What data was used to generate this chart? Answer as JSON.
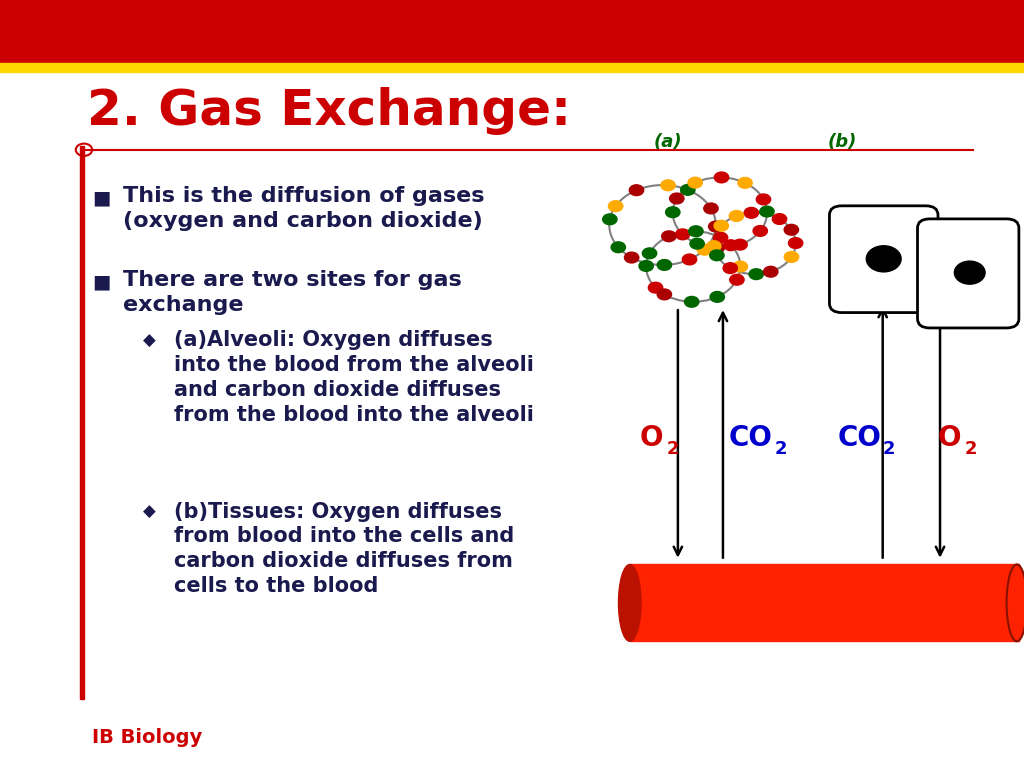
{
  "title": "2. Gas Exchange:",
  "title_color": "#CC0000",
  "title_fontsize": 36,
  "header_bar_color": "#CC0000",
  "header_bar_height": 0.082,
  "yellow_bar_color": "#FFD700",
  "yellow_bar_height": 0.012,
  "background_color": "#FFFFFF",
  "left_bar_color": "#CC0000",
  "bullet_color": "#1a1a4e",
  "bullet1": "This is the diffusion of gases\n(oxygen and carbon dioxide)",
  "bullet2": "There are two sites for gas\nexchange",
  "sub_bullet1_title": "(a)Alveoli: Oxygen diffuses\ninto the blood from the alveoli\nand carbon dioxide diffuses\nfrom the blood into the alveoli",
  "sub_bullet2_title": "(b)Tissues: Oxygen diffuses\nfrom blood into the cells and\ncarbon dioxide diffuses from\ncells to the blood",
  "footer_text": "IB Biology",
  "footer_color": "#CC0000",
  "label_a": "(a)",
  "label_b": "(b)",
  "label_color_ab": "#006600",
  "o2_color": "#CC0000",
  "co2_color": "#0000CC"
}
